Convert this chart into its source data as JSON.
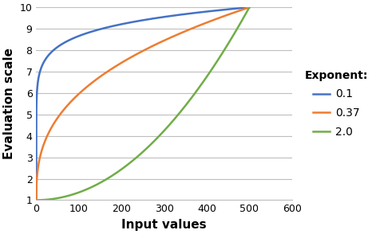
{
  "xlabel": "Input values",
  "ylabel": "Evaluation scale",
  "xlim": [
    0,
    600
  ],
  "ylim": [
    1,
    10
  ],
  "xticks": [
    0,
    100,
    200,
    300,
    400,
    500,
    600
  ],
  "yticks": [
    1,
    2,
    3,
    4,
    5,
    6,
    7,
    8,
    9,
    10
  ],
  "x_max": 500,
  "y_min": 1,
  "y_max": 10,
  "exponents": [
    0.1,
    0.37,
    2.0
  ],
  "colors": [
    "#4472C4",
    "#ED7D31",
    "#70AD47"
  ],
  "labels": [
    "0.1",
    "0.37",
    "2.0"
  ],
  "legend_title": "Exponent:",
  "bg_color": "#FFFFFF",
  "grid_color": "#BEBEBE",
  "linewidth": 1.8,
  "xlabel_fontsize": 11,
  "ylabel_fontsize": 11,
  "tick_fontsize": 9,
  "legend_fontsize": 10
}
